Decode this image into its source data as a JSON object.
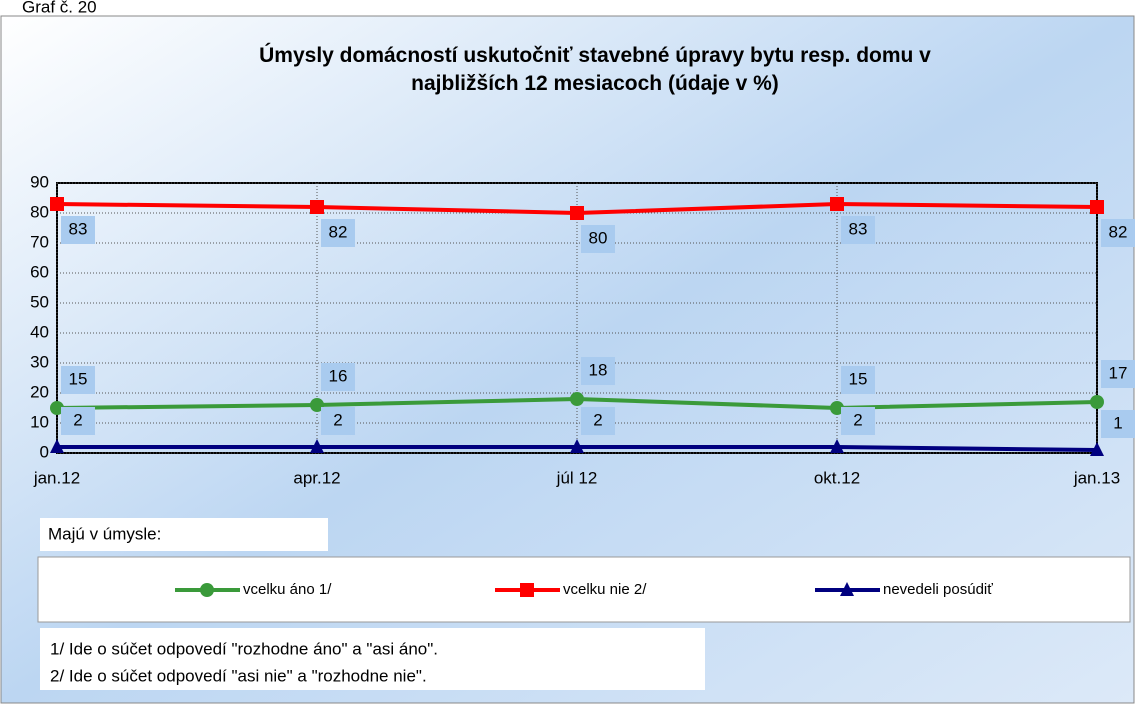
{
  "chart_data": {
    "type": "line",
    "label": "Graf č. 20",
    "title": "Úmysly domácností  uskutočniť stavebné úpravy bytu resp. domu v najbližších 12 mesiacoch (údaje v %)",
    "categories": [
      "jan.12",
      "apr.12",
      "júl 12",
      "okt.12",
      "jan.13"
    ],
    "series": [
      {
        "name": "vcelku áno 1/",
        "color": "#3a9a3a",
        "marker": "circle",
        "values": [
          15,
          16,
          18,
          15,
          17
        ]
      },
      {
        "name": "vcelku nie 2/",
        "color": "#ff0000",
        "marker": "square",
        "values": [
          83,
          82,
          80,
          83,
          82
        ]
      },
      {
        "name": "nevedeli posúdiť",
        "color": "#00007f",
        "marker": "triangle",
        "values": [
          2,
          2,
          2,
          2,
          1
        ]
      }
    ],
    "ylim": [
      0,
      90
    ],
    "yticks": [
      0,
      10,
      20,
      30,
      40,
      50,
      60,
      70,
      80,
      90
    ],
    "grid": true,
    "legend_title": "Majú v úmysle:",
    "notes": [
      "1/ Ide o súčet odpovedí \"rozhodne áno\" a \"asi áno\".",
      "2/ Ide o súčet odpovedí \"asi nie\" a \"rozhodne nie\"."
    ]
  }
}
